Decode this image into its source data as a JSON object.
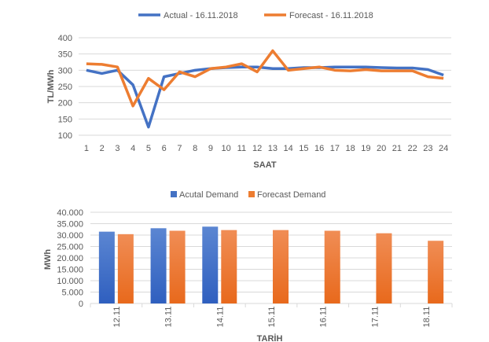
{
  "chart_data": [
    {
      "type": "line",
      "title": "",
      "xlabel": "SAAT",
      "ylabel": "TL/MWh",
      "ylim": [
        100,
        400
      ],
      "yticks": [
        100,
        150,
        200,
        250,
        300,
        350,
        400
      ],
      "x": [
        1,
        2,
        3,
        4,
        5,
        6,
        7,
        8,
        9,
        10,
        11,
        12,
        13,
        14,
        15,
        16,
        17,
        18,
        19,
        20,
        21,
        22,
        23,
        24
      ],
      "grid": true,
      "legend": "top",
      "series": [
        {
          "name": "Actual - 16.11.2018",
          "color": "#4472C4",
          "values": [
            300,
            290,
            300,
            255,
            125,
            280,
            290,
            300,
            305,
            308,
            310,
            310,
            305,
            305,
            308,
            308,
            310,
            310,
            310,
            308,
            307,
            307,
            302,
            285
          ]
        },
        {
          "name": "Forecast - 16.11.2018",
          "color": "#ED7D31",
          "values": [
            320,
            318,
            310,
            190,
            275,
            240,
            295,
            280,
            305,
            310,
            320,
            295,
            360,
            300,
            305,
            310,
            300,
            298,
            302,
            298,
            298,
            298,
            280,
            275
          ]
        }
      ]
    },
    {
      "type": "bar",
      "title": "",
      "xlabel": "TARİH",
      "ylabel": "MWh",
      "ylim": [
        0,
        40000
      ],
      "yticks": [
        "0",
        "5.000",
        "10.000",
        "15.000",
        "20.000",
        "25.000",
        "30.000",
        "35.000",
        "40.000"
      ],
      "categories": [
        "12.11",
        "13.11",
        "14.11",
        "15.11",
        "16.11",
        "17.11",
        "18.11"
      ],
      "grid": true,
      "legend": "top",
      "series": [
        {
          "name": "Acutal Demand",
          "color": "#4472C4",
          "values": [
            31500,
            33000,
            33700,
            null,
            null,
            null,
            null
          ]
        },
        {
          "name": "Forecast Demand",
          "color": "#ED7D31",
          "values": [
            30400,
            31900,
            32200,
            32200,
            31900,
            30800,
            27500
          ]
        }
      ]
    }
  ]
}
